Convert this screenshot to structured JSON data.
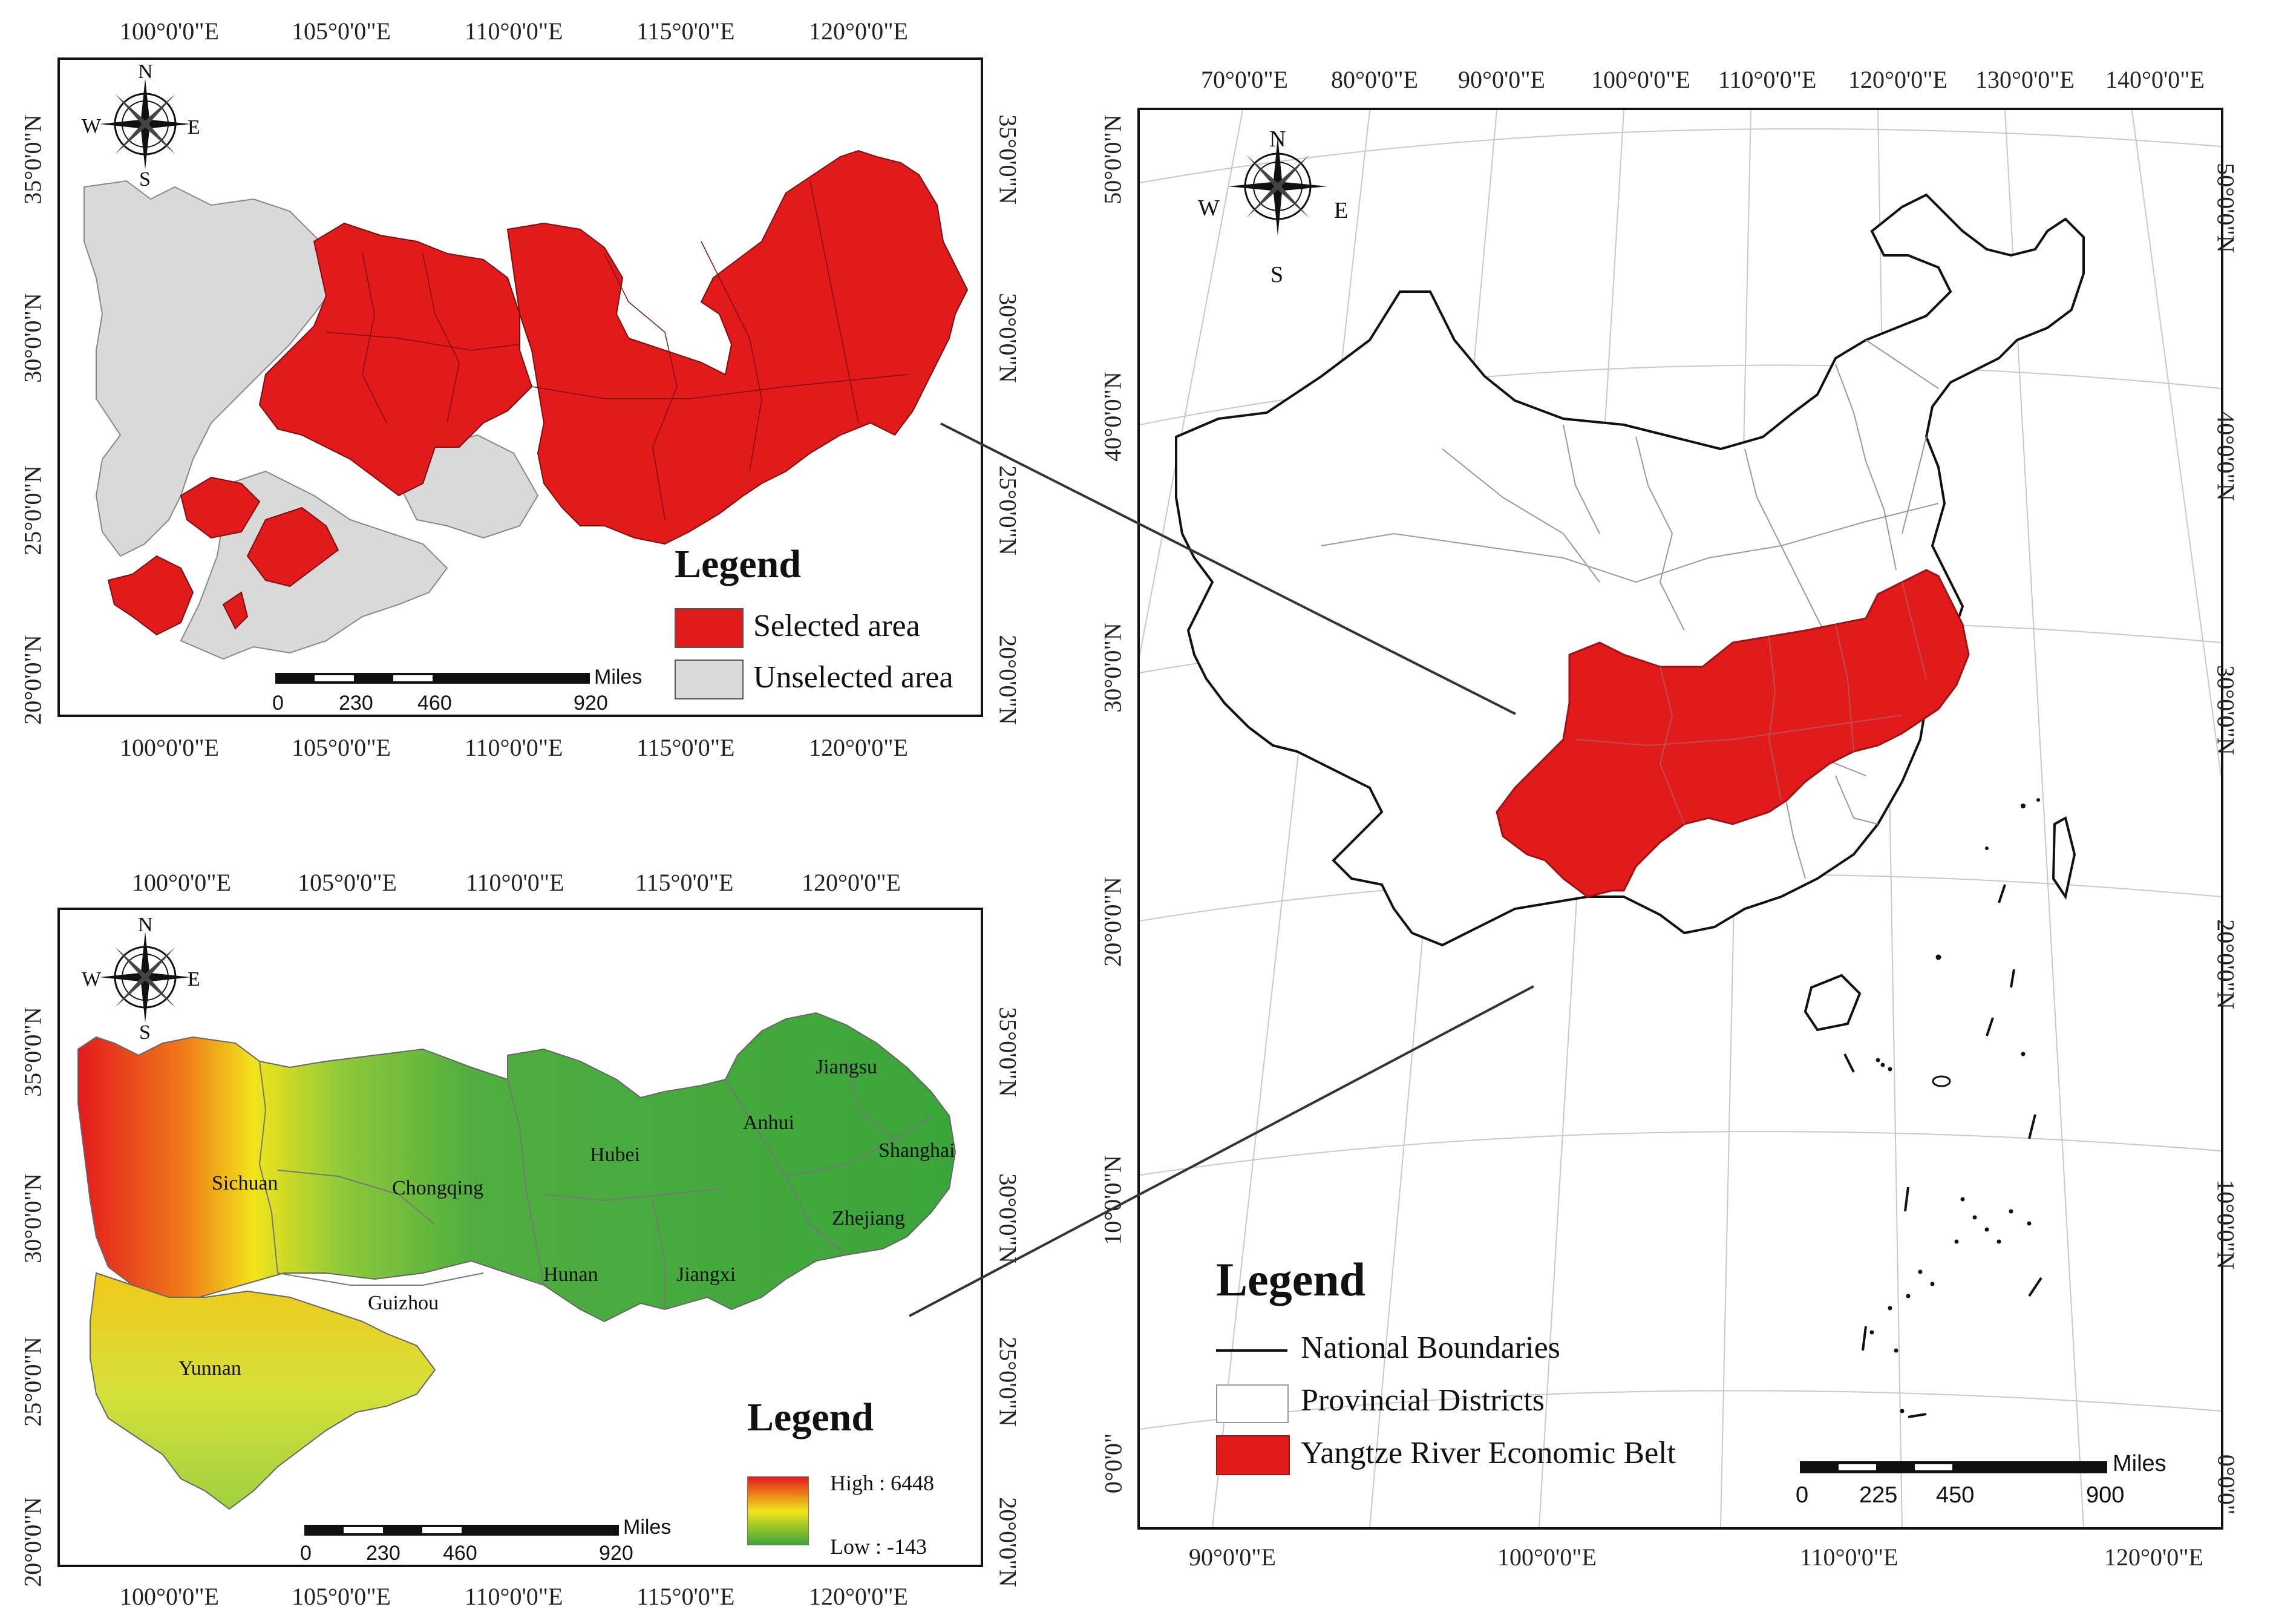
{
  "map_a": {
    "lon_ticks": [
      "100°0'0\"E",
      "105°0'0\"E",
      "110°0'0\"E",
      "115°0'0\"E",
      "120°0'0\"E"
    ],
    "lat_ticks": [
      "35°0'0\"N",
      "30°0'0\"N",
      "25°0'0\"N",
      "20°0'0\"N"
    ],
    "compass": {
      "n": "N",
      "s": "S",
      "e": "E",
      "w": "W"
    },
    "legend": {
      "title": "Legend",
      "items": [
        {
          "label": "Selected area",
          "color": "#e31a1c"
        },
        {
          "label": "Unselected area",
          "color": "#d9d9d9"
        }
      ]
    },
    "scale": {
      "unit": "Miles",
      "ticks": [
        "0",
        "230",
        "460",
        "920"
      ]
    }
  },
  "map_b": {
    "lon_ticks": [
      "100°0'0\"E",
      "105°0'0\"E",
      "110°0'0\"E",
      "115°0'0\"E",
      "120°0'0\"E"
    ],
    "lat_ticks": [
      "35°0'0\"N",
      "30°0'0\"N",
      "25°0'0\"N",
      "20°0'0\"N"
    ],
    "compass": {
      "n": "N",
      "s": "S",
      "e": "E",
      "w": "W"
    },
    "provinces": [
      "Jiangsu",
      "Anhui",
      "Shanghai",
      "Sichuan",
      "Chongqing",
      "Hubei",
      "Zhejiang",
      "Hunan",
      "Jiangxi",
      "Guizhou",
      "Yunnan"
    ],
    "legend": {
      "title": "Legend",
      "high": "High : 6448",
      "low": "Low : -143"
    },
    "scale": {
      "unit": "Miles",
      "ticks": [
        "0",
        "230",
        "460",
        "920"
      ]
    }
  },
  "map_c": {
    "top_lon_ticks": [
      "70°0'0\"E",
      "80°0'0\"E",
      "90°0'0\"E",
      "100°0'0\"E",
      "110°0'0\"E",
      "120°0'0\"E",
      "130°0'0\"E",
      "140°0'0\"E"
    ],
    "bottom_lon_ticks": [
      "90°0'0\"E",
      "100°0'0\"E",
      "110°0'0\"E",
      "120°0'0\"E"
    ],
    "left_lat_ticks": [
      "50°0'0\"N",
      "40°0'0\"N",
      "30°0'0\"N",
      "20°0'0\"N",
      "10°0'0\"N",
      "0°0'0\""
    ],
    "right_lat_ticks": [
      "50°0'0\"N",
      "40°0'0\"N",
      "30°0'0\"N",
      "20°0'0\"N",
      "10°0'0\"N",
      "0°0'0\""
    ],
    "compass": {
      "n": "N",
      "s": "S",
      "e": "E",
      "w": "W"
    },
    "legend": {
      "title": "Legend",
      "items": [
        {
          "label": "National Boundaries",
          "symbol": "line"
        },
        {
          "label": "Provincial Districts",
          "symbol": "box"
        },
        {
          "label": "Yangtze River Economic Belt",
          "symbol": "fill",
          "color": "#e31a1c"
        }
      ]
    },
    "scale": {
      "unit": "Miles",
      "ticks": [
        "0",
        "225",
        "450",
        "900"
      ]
    }
  },
  "colors": {
    "selected": "#e31a1c",
    "unselected": "#d9d9d9",
    "high": "#e31a1c",
    "mid": "#f2e41a",
    "low": "#3aa53a"
  }
}
